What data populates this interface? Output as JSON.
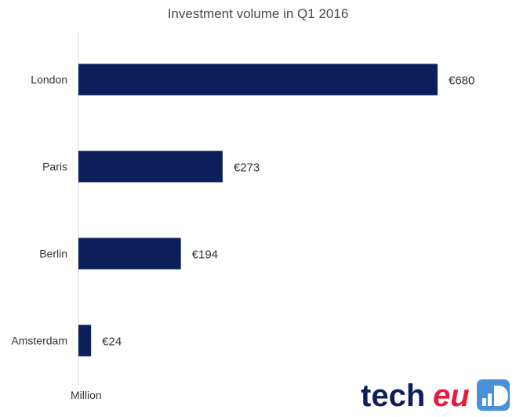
{
  "chart_data": {
    "type": "bar",
    "orientation": "horizontal",
    "title": "Investment volume in Q1 2016",
    "categories": [
      "London",
      "Paris",
      "Berlin",
      "Amsterdam"
    ],
    "values": [
      680,
      273,
      194,
      24
    ],
    "value_labels": [
      "€680",
      "€273",
      "€194",
      "€24"
    ],
    "unit_label": "Million",
    "xlim": [
      0,
      680
    ],
    "grid": false,
    "legend": "none",
    "bar_color": "#0c1f5a"
  },
  "logo": {
    "text": "techeu",
    "colors": {
      "dark": "#0c1f5a",
      "accent": "#e31c3d",
      "badge": "#4a90d9"
    }
  }
}
